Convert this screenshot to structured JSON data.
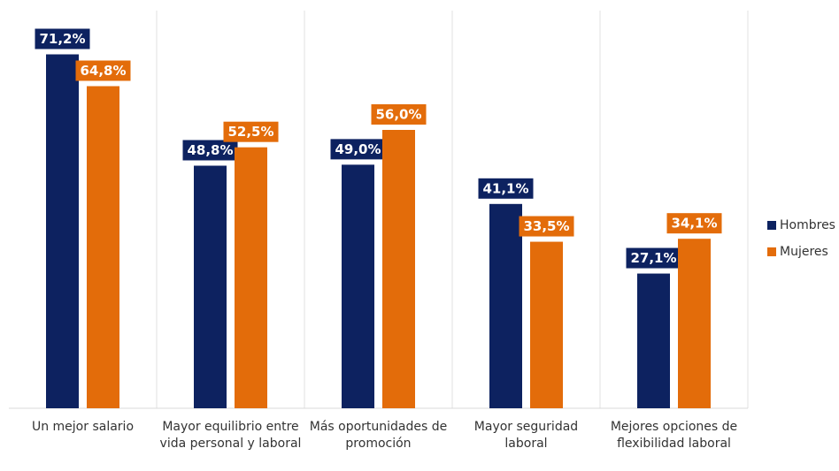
{
  "chart_data": {
    "type": "bar",
    "categories": [
      "Un mejor salario",
      "Mayor equilibrio entre vida personal y laboral",
      "Más oportunidades de promoción",
      "Mayor seguridad laboral",
      "Mejores opciones de flexibilidad laboral"
    ],
    "series": [
      {
        "name": "Hombres",
        "color": "#0d2260",
        "values": [
          71.2,
          48.8,
          49.0,
          41.1,
          27.1
        ],
        "value_labels": [
          "71,2%",
          "48,8%",
          "49,0%",
          "41,1%",
          "27,1%"
        ]
      },
      {
        "name": "Mujeres",
        "color": "#e36c0a",
        "values": [
          64.8,
          52.5,
          56.0,
          33.5,
          34.1
        ],
        "value_labels": [
          "64,8%",
          "52,5%",
          "56,0%",
          "33,5%",
          "34,1%"
        ]
      }
    ],
    "ylim": [
      0,
      80
    ],
    "legend": "right"
  }
}
